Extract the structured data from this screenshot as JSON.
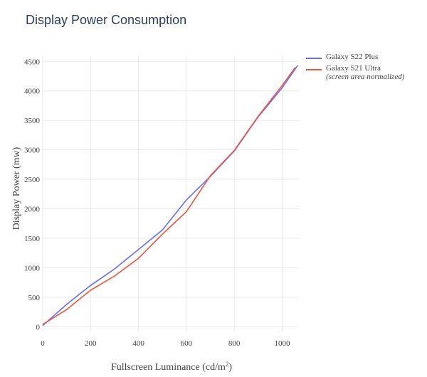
{
  "chart_data": {
    "type": "line",
    "title": "Display Power Consumption",
    "xlabel": "Fullscreen Luminance (cd/m",
    "xlabel_sup": "2",
    "xlabel_tail": ")",
    "ylabel": "Display Power (mw)",
    "xlim": [
      0,
      1070
    ],
    "ylim": [
      -80,
      4600
    ],
    "x_ticks": [
      "0",
      "200",
      "400",
      "600",
      "800",
      "1000"
    ],
    "y_ticks": [
      "0",
      "500",
      "1000",
      "1500",
      "2000",
      "2500",
      "3000",
      "3500",
      "4000",
      "4500"
    ],
    "grid": true,
    "legend_position": "top-right",
    "series": [
      {
        "name": "Galaxy S22 Plus",
        "subtitle": "",
        "color": "#636efa",
        "x": [
          0,
          100,
          200,
          300,
          400,
          500,
          600,
          700,
          800,
          900,
          1000,
          1065
        ],
        "y": [
          20,
          380,
          700,
          980,
          1310,
          1640,
          2150,
          2550,
          2980,
          3560,
          4050,
          4430
        ]
      },
      {
        "name": "Galaxy S21 Ultra",
        "subtitle": "(screen area normalized)",
        "color": "#ef553b",
        "x": [
          0,
          100,
          200,
          300,
          400,
          500,
          600,
          700,
          800,
          900,
          1000,
          1055
        ],
        "y": [
          40,
          290,
          620,
          860,
          1160,
          1570,
          1950,
          2560,
          2990,
          3570,
          4090,
          4400
        ]
      }
    ]
  }
}
